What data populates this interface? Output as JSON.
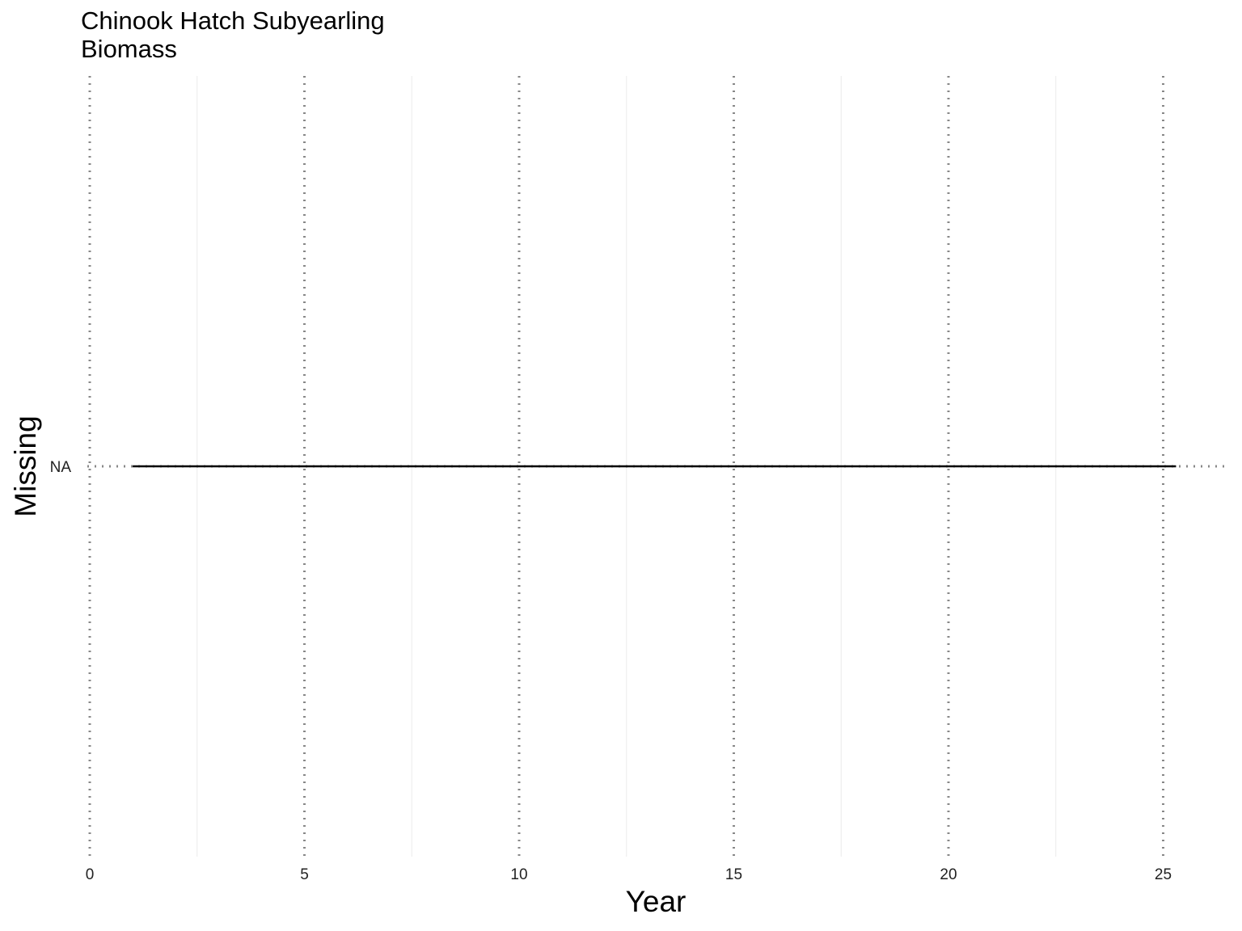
{
  "chart_data": {
    "type": "line",
    "title": "Chinook Hatch Subyearling\nBiomass",
    "xlabel": "Year",
    "ylabel": "Missing",
    "x_ticks": [
      0,
      5,
      10,
      15,
      20,
      25
    ],
    "y_ticks": [
      "NA"
    ],
    "xlim": [
      0,
      26.4
    ],
    "grid": true,
    "reference_lines": {
      "style": "dotted",
      "color": "#888888",
      "x": [
        0,
        5,
        10,
        15,
        20,
        25
      ],
      "y": [
        "NA"
      ]
    },
    "series": [
      {
        "color": "#000000",
        "x": [
          1,
          25.3
        ],
        "y": [
          "NA",
          "NA"
        ]
      }
    ]
  }
}
